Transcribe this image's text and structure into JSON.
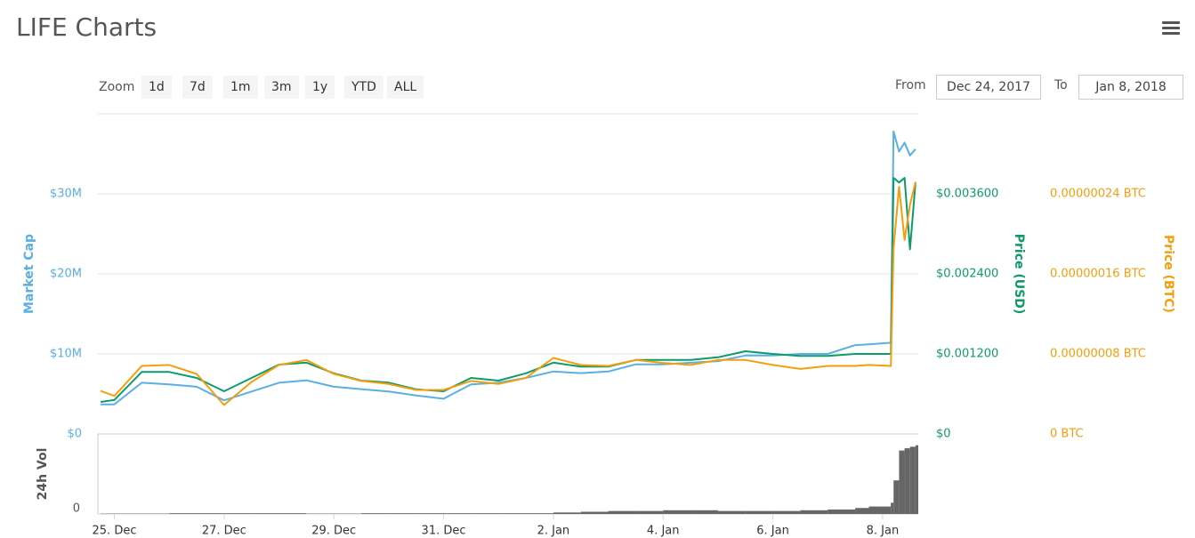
{
  "header": {
    "title": "LIFE Charts"
  },
  "controls": {
    "zoom_label": "Zoom",
    "zoom_buttons": [
      "1d",
      "7d",
      "1m",
      "3m",
      "1y",
      "YTD",
      "ALL"
    ],
    "from_label": "From",
    "from_date": "Dec 24, 2017",
    "to_label": "To",
    "to_date": "Jan 8, 2018"
  },
  "chart_data": [
    {
      "type": "line",
      "x": [
        0.75,
        1,
        1.5,
        2,
        2.5,
        3,
        3.5,
        4,
        4.5,
        5,
        5.5,
        6,
        6.5,
        7,
        7.5,
        8,
        8.5,
        9,
        9.5,
        10,
        10.5,
        11,
        11.5,
        12,
        12.5,
        13,
        13.5,
        14,
        14.5,
        14.75,
        15.15,
        15.2,
        15.3,
        15.4,
        15.5,
        15.6
      ],
      "xlim": [
        0.7,
        15.65
      ],
      "ylabel": "Market Cap",
      "y2label": "Price (USD)",
      "y3label": "Price (BTC)",
      "ylim": [
        0,
        40000000
      ],
      "yticks": [
        {
          "value": 0,
          "label": "$0"
        },
        {
          "value": 10000000,
          "label": "$10M"
        },
        {
          "value": 20000000,
          "label": "$20M"
        },
        {
          "value": 30000000,
          "label": "$30M"
        }
      ],
      "y2lim": [
        0,
        0.0048
      ],
      "y2ticks": [
        {
          "value": 0,
          "label": "$0"
        },
        {
          "value": 0.0012,
          "label": "$0.001200"
        },
        {
          "value": 0.0024,
          "label": "$0.002400"
        },
        {
          "value": 0.0036,
          "label": "$0.003600"
        }
      ],
      "y3lim": [
        0,
        3.2e-07
      ],
      "y3ticks": [
        {
          "value": 0,
          "label": "0 BTC"
        },
        {
          "value": 8e-08,
          "label": "0.00000008 BTC"
        },
        {
          "value": 1.6e-07,
          "label": "0.00000016 BTC"
        },
        {
          "value": 2.4e-07,
          "label": "0.00000024 BTC"
        }
      ],
      "grid": true,
      "series": [
        {
          "name": "Market Cap",
          "color": "#5aafe3",
          "axis": "y",
          "values": [
            3700000,
            3700000,
            6400000,
            6200000,
            5900000,
            4200000,
            5300000,
            6400000,
            6700000,
            5900000,
            5600000,
            5300000,
            4800000,
            4400000,
            6200000,
            6400000,
            7000000,
            7800000,
            7600000,
            7800000,
            8700000,
            8700000,
            8900000,
            9100000,
            9800000,
            9800000,
            10000000,
            10000000,
            11100000,
            11200000,
            11400000,
            37800000,
            35300000,
            36400000,
            34800000,
            35600000
          ]
        },
        {
          "name": "Price (USD)",
          "color": "#0e9a6b",
          "axis": "y2",
          "values": [
            0.00048,
            0.00051,
            0.00093,
            0.00093,
            0.00084,
            0.00064,
            0.00084,
            0.00104,
            0.00107,
            0.00091,
            0.0008,
            0.00077,
            0.00067,
            0.00064,
            0.00084,
            0.0008,
            0.00091,
            0.00107,
            0.00101,
            0.00101,
            0.00111,
            0.00111,
            0.00111,
            0.00115,
            0.00124,
            0.0012,
            0.00117,
            0.00117,
            0.0012,
            0.0012,
            0.0012,
            0.00384,
            0.00377,
            0.00384,
            0.00277,
            0.00377
          ]
        },
        {
          "name": "Price (BTC)",
          "color": "#f59e0d",
          "axis": "y3",
          "values": [
            4.3e-08,
            3.8e-08,
            6.8e-08,
            6.9e-08,
            6e-08,
            2.9e-08,
            5.2e-08,
            6.9e-08,
            7.4e-08,
            6e-08,
            5.3e-08,
            5e-08,
            4.4e-08,
            4.4e-08,
            5.3e-08,
            5e-08,
            5.6e-08,
            7.6e-08,
            6.9e-08,
            6.8e-08,
            7.4e-08,
            7.1e-08,
            6.9e-08,
            7.4e-08,
            7.4e-08,
            6.9e-08,
            6.5e-08,
            6.8e-08,
            6.8e-08,
            6.9e-08,
            6.8e-08,
            1.85e-07,
            2.47e-07,
            1.94e-07,
            2.29e-07,
            2.52e-07
          ]
        }
      ]
    },
    {
      "type": "bar",
      "ylabel": "24h Vol",
      "color": "#666666",
      "x": [
        0.75,
        1,
        1.5,
        2,
        2.5,
        3,
        3.5,
        4,
        4.5,
        5,
        5.5,
        6,
        6.5,
        7,
        7.5,
        8,
        8.5,
        9,
        9.5,
        10,
        10.5,
        11,
        11.5,
        12,
        12.5,
        13,
        13.5,
        14,
        14.5,
        14.75,
        15.15,
        15.2,
        15.3,
        15.4,
        15.5,
        15.6
      ],
      "values": [
        0.5,
        0.5,
        0.5,
        1,
        1,
        1,
        1,
        1,
        0.5,
        0.5,
        1,
        1,
        1,
        1,
        1,
        1,
        1,
        2,
        3,
        4,
        4,
        5,
        5,
        4,
        4,
        4,
        5,
        6,
        8,
        10,
        15,
        45,
        85,
        88,
        90,
        92
      ],
      "xlim": [
        0.7,
        15.65
      ],
      "xticks": [
        {
          "value": 1,
          "label": "25. Dec"
        },
        {
          "value": 3,
          "label": "27. Dec"
        },
        {
          "value": 5,
          "label": "29. Dec"
        },
        {
          "value": 7,
          "label": "31. Dec"
        },
        {
          "value": 9,
          "label": "2. Jan"
        },
        {
          "value": 11,
          "label": "4. Jan"
        },
        {
          "value": 13,
          "label": "6. Jan"
        },
        {
          "value": 15,
          "label": "8. Jan"
        }
      ],
      "ylim": [
        0,
        100
      ],
      "yticks": [
        0
      ]
    }
  ]
}
